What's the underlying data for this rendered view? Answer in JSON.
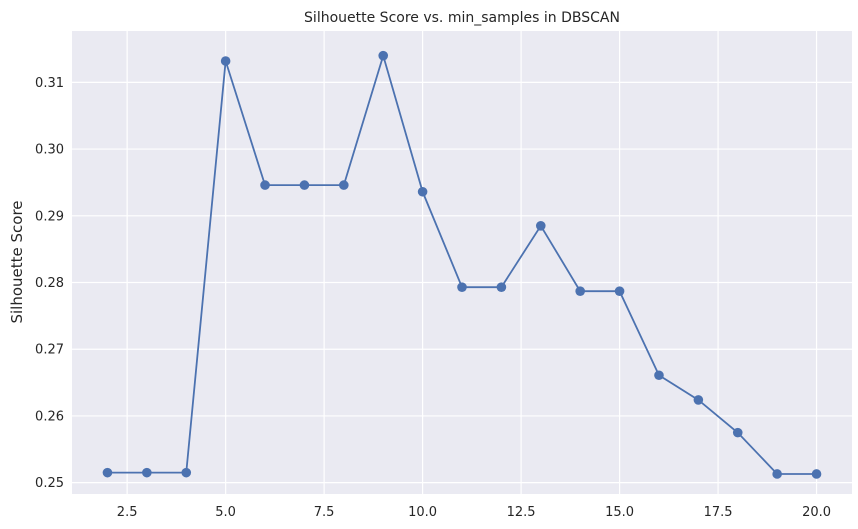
{
  "chart_data": {
    "type": "line",
    "title": "Silhouette Score vs. min_samples in DBSCAN",
    "xlabel": "",
    "ylabel": "Silhouette Score",
    "x": [
      2,
      3,
      4,
      5,
      6,
      7,
      8,
      9,
      10,
      11,
      12,
      13,
      14,
      15,
      16,
      17,
      18,
      19,
      20
    ],
    "series": [
      {
        "values": [
          0.2515,
          0.2515,
          0.2515,
          0.3132,
          0.2946,
          0.2946,
          0.2946,
          0.314,
          0.2936,
          0.2793,
          0.2793,
          0.2885,
          0.2787,
          0.2787,
          0.2661,
          0.2624,
          0.2575,
          0.2513,
          0.2513
        ],
        "color": "#4c72b0",
        "marker": "circle"
      }
    ],
    "xlim": [
      1.1,
      20.9
    ],
    "ylim": [
      0.2483,
      0.3177
    ],
    "xticks": [
      2.5,
      5.0,
      7.5,
      10.0,
      12.5,
      15.0,
      17.5,
      20.0
    ],
    "xtick_labels": [
      "2.5",
      "5.0",
      "7.5",
      "10.0",
      "12.5",
      "15.0",
      "17.5",
      "20.0"
    ],
    "yticks": [
      0.25,
      0.26,
      0.27,
      0.28,
      0.29,
      0.3,
      0.31
    ],
    "ytick_labels": [
      "0.25",
      "0.26",
      "0.27",
      "0.28",
      "0.29",
      "0.30",
      "0.31"
    ],
    "grid": true,
    "background": "#eaeaf2",
    "grid_color": "#ffffff"
  }
}
